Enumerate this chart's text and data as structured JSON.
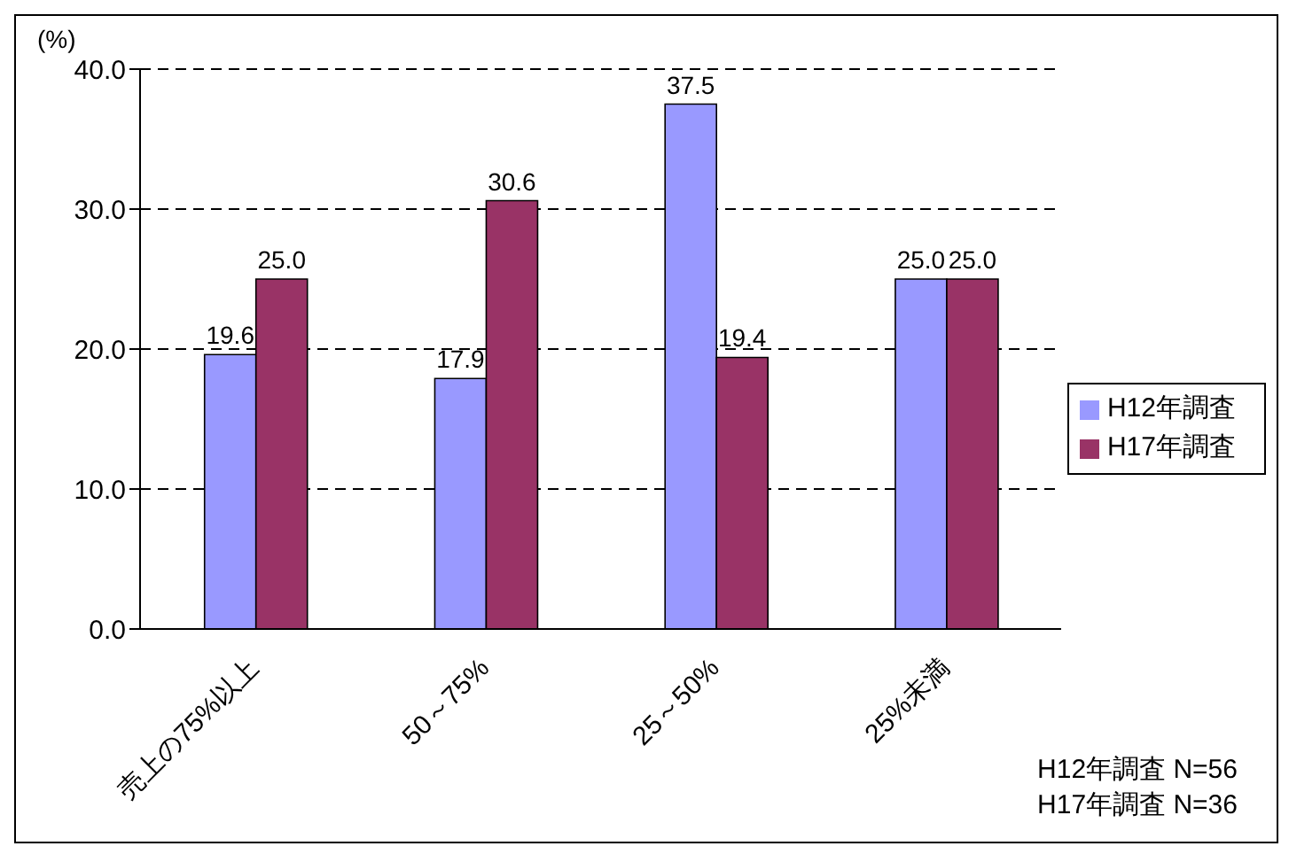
{
  "chart_data": {
    "type": "bar",
    "ylabel": "(%)",
    "categories": [
      "売上の75%以上",
      "50～75%",
      "25～50%",
      "25%未満"
    ],
    "series": [
      {
        "name": "H12年調査",
        "color": "#9999ff",
        "values": [
          19.6,
          17.9,
          37.5,
          25.0
        ],
        "value_labels": [
          "19.6",
          "17.9",
          "37.5",
          "25.0"
        ]
      },
      {
        "name": "H17年調査",
        "color": "#993366",
        "values": [
          25.0,
          30.6,
          19.4,
          25.0
        ],
        "value_labels": [
          "25.0",
          "30.6",
          "19.4",
          "25.0"
        ]
      }
    ],
    "ylim": [
      0,
      40
    ],
    "yticks": [
      {
        "value": 0,
        "label": "0.0"
      },
      {
        "value": 10,
        "label": "10.0"
      },
      {
        "value": 20,
        "label": "20.0"
      },
      {
        "value": 30,
        "label": "30.0"
      },
      {
        "value": 40,
        "label": "40.0"
      }
    ],
    "grid": "y",
    "legend": "right",
    "annotations": [
      "H12年調査 N=56",
      "H17年調査 N=36"
    ]
  }
}
